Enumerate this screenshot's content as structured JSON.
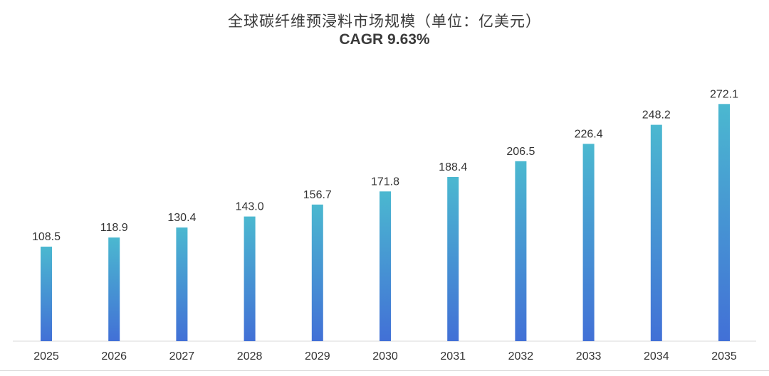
{
  "chart_data": {
    "type": "bar",
    "title": "全球碳纤维预浸料市场规模（单位：亿美元）",
    "subtitle": "CAGR 9.63%",
    "xlabel": "",
    "ylabel": "",
    "categories": [
      "2025",
      "2026",
      "2027",
      "2028",
      "2029",
      "2030",
      "2031",
      "2032",
      "2033",
      "2034",
      "2035"
    ],
    "values": [
      108.5,
      118.9,
      130.4,
      143.0,
      156.7,
      171.8,
      188.4,
      206.5,
      226.4,
      248.2,
      272.1
    ],
    "value_labels": [
      "108.5",
      "118.9",
      "130.4",
      "143.0",
      "156.7",
      "171.8",
      "188.4",
      "206.5",
      "226.4",
      "248.2",
      "272.1"
    ],
    "ylim": [
      0,
      305
    ],
    "grid": false,
    "legend": "none",
    "colors": {
      "bar_top": "#4bb8d0",
      "bar_bottom": "#4270d6",
      "axis": "#d9d9d9",
      "text": "#333333"
    }
  }
}
